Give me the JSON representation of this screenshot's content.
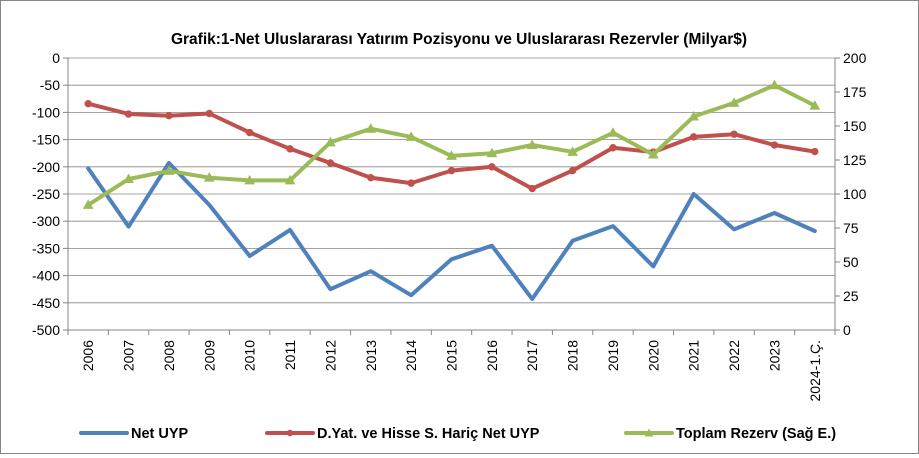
{
  "chart_data": {
    "type": "line",
    "title": "Grafik:1-Net Uluslararası Yatırım Pozisyonu ve Uluslararası Rezervler (Milyar$)",
    "categories": [
      "2006",
      "2007",
      "2008",
      "2009",
      "2010",
      "2011",
      "2012",
      "2013",
      "2014",
      "2015",
      "2016",
      "2017",
      "2018",
      "2019",
      "2020",
      "2021",
      "2022",
      "2023",
      "2024-1.Ç."
    ],
    "left_axis": {
      "min": -500,
      "max": 0,
      "step": 50,
      "ticks": [
        "0",
        "-50",
        "-100",
        "-150",
        "-200",
        "-250",
        "-300",
        "-350",
        "-400",
        "-450",
        "-500"
      ]
    },
    "right_axis": {
      "min": 0,
      "max": 200,
      "step": 25,
      "ticks": [
        "200",
        "175",
        "150",
        "125",
        "100",
        "75",
        "50",
        "25",
        "0"
      ]
    },
    "grid": true,
    "legend_position": "bottom",
    "series": [
      {
        "name": "Net UYP",
        "axis": "left",
        "color": "#4f81bd",
        "marker": "none",
        "values": [
          -203,
          -310,
          -193,
          -270,
          -364,
          -316,
          -425,
          -392,
          -436,
          -370,
          -345,
          -443,
          -336,
          -309,
          -383,
          -250,
          -315,
          -285,
          -318
        ]
      },
      {
        "name": "D.Yat. ve Hisse S. Hariç Net UYP",
        "axis": "left",
        "color": "#c0504d",
        "marker": "circle",
        "values": [
          -84,
          -103,
          -106,
          -102,
          -137,
          -167,
          -193,
          -220,
          -230,
          -207,
          -200,
          -240,
          -207,
          -165,
          -173,
          -145,
          -140,
          -160,
          -172
        ]
      },
      {
        "name": "Toplam Rezerv (Sağ E.)",
        "axis": "right",
        "color": "#9bbb59",
        "marker": "triangle",
        "values": [
          92,
          111,
          117,
          112,
          110,
          110,
          138,
          148,
          142,
          128,
          130,
          136,
          131,
          145,
          129,
          157,
          167,
          180,
          165
        ]
      }
    ]
  }
}
